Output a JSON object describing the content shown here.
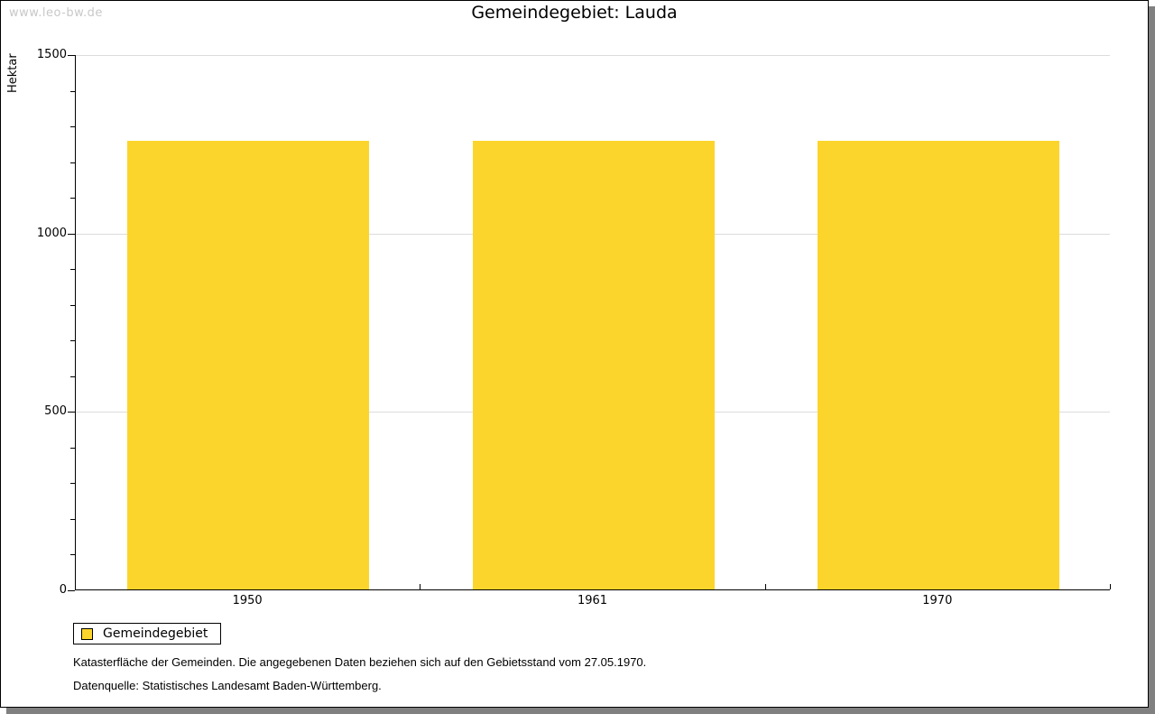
{
  "watermark": "www.leo-bw.de",
  "title": "Gemeindegebiet: Lauda",
  "chart_data": {
    "type": "bar",
    "title": "Gemeindegebiet: Lauda",
    "categories": [
      "1950",
      "1961",
      "1970"
    ],
    "series": [
      {
        "name": "Gemeindegebiet",
        "values": [
          1257,
          1257,
          1257
        ]
      }
    ],
    "xlabel": "",
    "ylabel": "Hektar",
    "ylim": [
      0,
      1500
    ],
    "yticks_major": [
      0,
      500,
      1000,
      1500
    ],
    "ytick_minor_step": 100,
    "grid": "horizontal-major-only",
    "legend_position": "bottom-left",
    "bar_width_fraction": 0.7
  },
  "legend": {
    "label": "Gemeindegebiet",
    "swatch_color": "#FCD52C"
  },
  "captions": {
    "line1": "Katasterfläche der Gemeinden. Die angegebenen Daten beziehen sich auf den Gebietsstand vom 27.05.1970.",
    "line2": "Datenquelle: Statistisches Landesamt Baden-Württemberg."
  },
  "colors": {
    "bar": "#FCD52C",
    "gridline": "#DCDCDC",
    "axis": "#000000",
    "watermark": "#C8C8C8",
    "frame_shadow": "#808080"
  }
}
